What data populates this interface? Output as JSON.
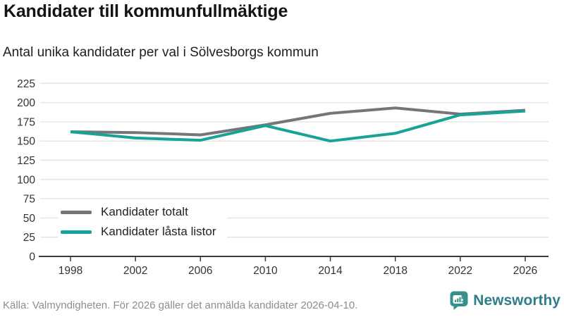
{
  "title": "Kandidater till kommunfullmäktige",
  "subtitle": "Antal unika kandidater per val i Sölvesborgs kommun",
  "footer": {
    "source": "Källa: Valmyndigheten. För 2026 gäller det anmälda kandidater 2026-04-10."
  },
  "branding": {
    "name": "Newsworthy",
    "icon": "newsworthy-speech-bubble-barchart-icon",
    "icon_color": "#35918d",
    "text_color": "#2e7f87"
  },
  "chart_data": {
    "type": "line",
    "title": "Kandidater till kommunfullmäktige",
    "subtitle": "Antal unika kandidater per val i Sölvesborgs kommun",
    "categories": [
      "1998",
      "2002",
      "2006",
      "2010",
      "2014",
      "2018",
      "2022",
      "2026"
    ],
    "series": [
      {
        "name": "Kandidater totalt",
        "color": "#75757a",
        "values": [
          162,
          161,
          158,
          171,
          186,
          193,
          185,
          190
        ]
      },
      {
        "name": "Kandidater låsta listor",
        "color": "#17a398",
        "values": [
          162,
          154,
          151,
          170,
          150,
          160,
          184,
          189
        ]
      }
    ],
    "xlabel": "",
    "ylabel": "",
    "ylim": [
      0,
      225
    ],
    "ytick_step": 25,
    "grid": "horizontal",
    "legend_position": "inside-bottom-left",
    "colors": {
      "gridline": "#e3e3e3",
      "axis": "#3a3a3a",
      "tick_label": "#333333"
    }
  }
}
